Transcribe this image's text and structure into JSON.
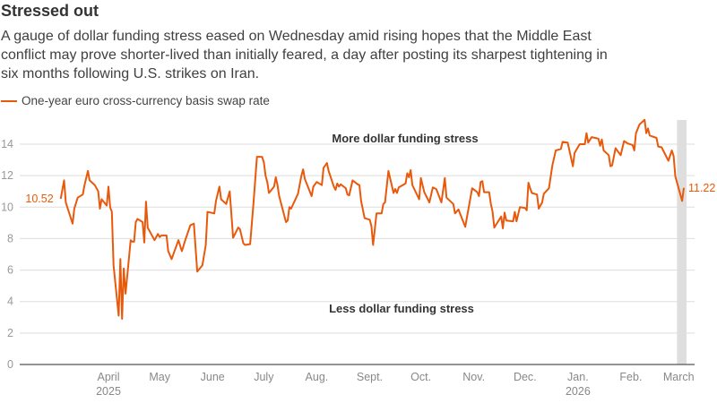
{
  "title": "Stressed out",
  "subtitle_lines": [
    "A gauge of dollar funding stress eased on Wednesday amid rising hopes that the Middle East",
    "conflict may prove shorter-lived than initially feared, a day after posting its sharpest tightening in",
    "six months following U.S. strikes on Iran."
  ],
  "chart_data": {
    "type": "line",
    "title": "Stressed out",
    "xlabel": "",
    "ylabel": "",
    "ylim": [
      0,
      14
    ],
    "yticks": [
      0,
      2,
      4,
      6,
      8,
      10,
      12,
      14
    ],
    "grid": true,
    "legend_position": "top-left",
    "line_color": "#e8590c",
    "shade_color": "#dedede",
    "shaded_range": [
      "2026-02-28",
      "2026-03-04"
    ],
    "xticks": [
      {
        "date": "2025-04-01",
        "label": "April",
        "sublabel": "2025"
      },
      {
        "date": "2025-05-01",
        "label": "May",
        "sublabel": ""
      },
      {
        "date": "2025-06-01",
        "label": "June",
        "sublabel": ""
      },
      {
        "date": "2025-07-01",
        "label": "July",
        "sublabel": ""
      },
      {
        "date": "2025-08-01",
        "label": "Aug.",
        "sublabel": ""
      },
      {
        "date": "2025-09-01",
        "label": "Sept.",
        "sublabel": ""
      },
      {
        "date": "2025-10-01",
        "label": "Oct.",
        "sublabel": ""
      },
      {
        "date": "2025-11-01",
        "label": "Nov.",
        "sublabel": ""
      },
      {
        "date": "2025-12-01",
        "label": "Dec.",
        "sublabel": ""
      },
      {
        "date": "2026-01-01",
        "label": "Jan.",
        "sublabel": "2026"
      },
      {
        "date": "2026-02-01",
        "label": "Feb.",
        "sublabel": ""
      },
      {
        "date": "2026-03-01",
        "label": "March",
        "sublabel": ""
      }
    ],
    "annotations": [
      "More dollar funding stress",
      "Less dollar funding stress"
    ],
    "start_label": "10.52",
    "end_label": "11.22",
    "series": [
      {
        "name": "One-year euro cross-currency basis swap rate",
        "points": [
          [
            "2025-03-04",
            10.52
          ],
          [
            "2025-03-06",
            11.7
          ],
          [
            "2025-03-07",
            10.3
          ],
          [
            "2025-03-11",
            8.95
          ],
          [
            "2025-03-12",
            9.9
          ],
          [
            "2025-03-14",
            10.6
          ],
          [
            "2025-03-17",
            10.8
          ],
          [
            "2025-03-18",
            11.4
          ],
          [
            "2025-03-20",
            12.3
          ],
          [
            "2025-03-21",
            11.7
          ],
          [
            "2025-03-24",
            11.4
          ],
          [
            "2025-03-26",
            11.0
          ],
          [
            "2025-03-27",
            9.9
          ],
          [
            "2025-03-28",
            10.5
          ],
          [
            "2025-03-31",
            10.1
          ],
          [
            "2025-04-01",
            11.3
          ],
          [
            "2025-04-02",
            10.0
          ],
          [
            "2025-04-03",
            9.7
          ],
          [
            "2025-04-04",
            6.3
          ],
          [
            "2025-04-07",
            3.1
          ],
          [
            "2025-04-08",
            6.7
          ],
          [
            "2025-04-09",
            2.9
          ],
          [
            "2025-04-10",
            6.1
          ],
          [
            "2025-04-11",
            4.5
          ],
          [
            "2025-04-14",
            7.9
          ],
          [
            "2025-04-15",
            7.8
          ],
          [
            "2025-04-16",
            7.8
          ],
          [
            "2025-04-17",
            9.05
          ],
          [
            "2025-04-18",
            9.25
          ],
          [
            "2025-04-21",
            9.05
          ],
          [
            "2025-04-22",
            7.75
          ],
          [
            "2025-04-23",
            10.35
          ],
          [
            "2025-04-24",
            8.7
          ],
          [
            "2025-04-28",
            7.9
          ],
          [
            "2025-04-30",
            8.3
          ],
          [
            "2025-05-01",
            8.1
          ],
          [
            "2025-05-02",
            8.2
          ],
          [
            "2025-05-05",
            8.2
          ],
          [
            "2025-05-06",
            7.2
          ],
          [
            "2025-05-08",
            6.7
          ],
          [
            "2025-05-12",
            7.9
          ],
          [
            "2025-05-14",
            7.2
          ],
          [
            "2025-05-16",
            7.9
          ],
          [
            "2025-05-19",
            8.85
          ],
          [
            "2025-05-21",
            8.95
          ],
          [
            "2025-05-23",
            5.9
          ],
          [
            "2025-05-26",
            6.3
          ],
          [
            "2025-05-28",
            7.6
          ],
          [
            "2025-05-29",
            9.7
          ],
          [
            "2025-06-02",
            9.6
          ],
          [
            "2025-06-03",
            10.4
          ],
          [
            "2025-06-05",
            11.3
          ],
          [
            "2025-06-06",
            10.5
          ],
          [
            "2025-06-09",
            10.2
          ],
          [
            "2025-06-11",
            11.0
          ],
          [
            "2025-06-13",
            8.05
          ],
          [
            "2025-06-16",
            8.7
          ],
          [
            "2025-06-17",
            8.6
          ],
          [
            "2025-06-19",
            7.7
          ],
          [
            "2025-06-20",
            7.6
          ],
          [
            "2025-06-23",
            7.65
          ],
          [
            "2025-06-25",
            10.3
          ],
          [
            "2025-06-27",
            13.2
          ],
          [
            "2025-06-30",
            13.2
          ],
          [
            "2025-07-01",
            12.85
          ],
          [
            "2025-07-02",
            12.0
          ],
          [
            "2025-07-03",
            11.6
          ],
          [
            "2025-07-04",
            10.9
          ],
          [
            "2025-07-07",
            11.3
          ],
          [
            "2025-07-08",
            11.9
          ],
          [
            "2025-07-09",
            11.4
          ],
          [
            "2025-07-10",
            10.7
          ],
          [
            "2025-07-14",
            9.05
          ],
          [
            "2025-07-15",
            9.15
          ],
          [
            "2025-07-16",
            10.0
          ],
          [
            "2025-07-17",
            9.9
          ],
          [
            "2025-07-21",
            10.85
          ],
          [
            "2025-07-23",
            12.0
          ],
          [
            "2025-07-24",
            12.4
          ],
          [
            "2025-07-25",
            11.8
          ],
          [
            "2025-07-29",
            10.7
          ],
          [
            "2025-07-30",
            11.3
          ],
          [
            "2025-08-01",
            11.6
          ],
          [
            "2025-08-04",
            11.4
          ],
          [
            "2025-08-05",
            12.5
          ],
          [
            "2025-08-07",
            12.8
          ],
          [
            "2025-08-08",
            12.3
          ],
          [
            "2025-08-11",
            11.3
          ],
          [
            "2025-08-12",
            11.1
          ],
          [
            "2025-08-13",
            11.5
          ],
          [
            "2025-08-14",
            11.3
          ],
          [
            "2025-08-15",
            11.45
          ],
          [
            "2025-08-18",
            11.2
          ],
          [
            "2025-08-19",
            10.8
          ],
          [
            "2025-08-20",
            10.75
          ],
          [
            "2025-08-22",
            11.7
          ],
          [
            "2025-08-25",
            11.45
          ],
          [
            "2025-08-26",
            11.4
          ],
          [
            "2025-08-27",
            10.4
          ],
          [
            "2025-08-29",
            9.3
          ],
          [
            "2025-09-01",
            9.2
          ],
          [
            "2025-09-02",
            8.8
          ],
          [
            "2025-09-03",
            7.6
          ],
          [
            "2025-09-05",
            9.6
          ],
          [
            "2025-09-08",
            9.6
          ],
          [
            "2025-09-09",
            10.2
          ],
          [
            "2025-09-10",
            10.3
          ],
          [
            "2025-09-12",
            12.3
          ],
          [
            "2025-09-15",
            10.9
          ],
          [
            "2025-09-16",
            11.15
          ],
          [
            "2025-09-17",
            10.9
          ],
          [
            "2025-09-18",
            11.25
          ],
          [
            "2025-09-22",
            11.5
          ],
          [
            "2025-09-23",
            12.15
          ],
          [
            "2025-09-24",
            11.9
          ],
          [
            "2025-09-25",
            12.35
          ],
          [
            "2025-09-26",
            11.4
          ],
          [
            "2025-09-30",
            10.5
          ],
          [
            "2025-10-01",
            11.85
          ],
          [
            "2025-10-03",
            10.95
          ],
          [
            "2025-10-06",
            10.3
          ],
          [
            "2025-10-08",
            11.25
          ],
          [
            "2025-10-10",
            11.15
          ],
          [
            "2025-10-13",
            10.3
          ],
          [
            "2025-10-15",
            11.85
          ],
          [
            "2025-10-16",
            10.6
          ],
          [
            "2025-10-20",
            10.2
          ],
          [
            "2025-10-21",
            9.6
          ],
          [
            "2025-10-23",
            9.85
          ],
          [
            "2025-10-27",
            8.75
          ],
          [
            "2025-10-31",
            11.2
          ],
          [
            "2025-11-03",
            10.95
          ],
          [
            "2025-11-04",
            10.7
          ],
          [
            "2025-11-05",
            11.6
          ],
          [
            "2025-11-06",
            11.65
          ],
          [
            "2025-11-07",
            10.95
          ],
          [
            "2025-11-10",
            10.95
          ],
          [
            "2025-11-11",
            10.2
          ],
          [
            "2025-11-12",
            9.7
          ],
          [
            "2025-11-13",
            8.7
          ],
          [
            "2025-11-17",
            9.4
          ],
          [
            "2025-11-18",
            8.65
          ],
          [
            "2025-11-19",
            9.65
          ],
          [
            "2025-11-20",
            9.15
          ],
          [
            "2025-11-24",
            9.1
          ],
          [
            "2025-11-25",
            9.7
          ],
          [
            "2025-11-26",
            9.1
          ],
          [
            "2025-11-28",
            10.0
          ],
          [
            "2025-12-01",
            9.95
          ],
          [
            "2025-12-02",
            9.8
          ],
          [
            "2025-12-03",
            11.55
          ],
          [
            "2025-12-04",
            11.2
          ],
          [
            "2025-12-05",
            10.9
          ],
          [
            "2025-12-08",
            10.8
          ],
          [
            "2025-12-09",
            9.9
          ],
          [
            "2025-12-11",
            10.3
          ],
          [
            "2025-12-12",
            10.85
          ],
          [
            "2025-12-15",
            11.2
          ],
          [
            "2025-12-17",
            12.65
          ],
          [
            "2025-12-19",
            13.6
          ],
          [
            "2025-12-22",
            13.7
          ],
          [
            "2025-12-23",
            14.15
          ],
          [
            "2025-12-26",
            14.1
          ],
          [
            "2025-12-29",
            12.6
          ],
          [
            "2025-12-30",
            13.45
          ],
          [
            "2026-01-02",
            14.0
          ],
          [
            "2026-01-05",
            14.0
          ],
          [
            "2026-01-06",
            14.7
          ],
          [
            "2026-01-07",
            14.1
          ],
          [
            "2026-01-09",
            14.45
          ],
          [
            "2026-01-13",
            14.35
          ],
          [
            "2026-01-14",
            13.9
          ],
          [
            "2026-01-15",
            14.3
          ],
          [
            "2026-01-16",
            13.6
          ],
          [
            "2026-01-19",
            13.3
          ],
          [
            "2026-01-20",
            12.6
          ],
          [
            "2026-01-21",
            12.65
          ],
          [
            "2026-01-23",
            13.75
          ],
          [
            "2026-01-26",
            13.3
          ],
          [
            "2026-01-28",
            14.2
          ],
          [
            "2026-01-30",
            14.05
          ],
          [
            "2026-02-02",
            13.95
          ],
          [
            "2026-02-03",
            13.6
          ],
          [
            "2026-02-04",
            14.7
          ],
          [
            "2026-02-06",
            15.25
          ],
          [
            "2026-02-09",
            15.55
          ],
          [
            "2026-02-10",
            14.7
          ],
          [
            "2026-02-11",
            15.0
          ],
          [
            "2026-02-12",
            14.55
          ],
          [
            "2026-02-16",
            14.4
          ],
          [
            "2026-02-17",
            13.85
          ],
          [
            "2026-02-19",
            13.8
          ],
          [
            "2026-02-23",
            12.95
          ],
          [
            "2026-02-25",
            13.6
          ],
          [
            "2026-02-26",
            13.25
          ],
          [
            "2026-02-27",
            11.95
          ],
          [
            "2026-03-03",
            10.4
          ],
          [
            "2026-03-04",
            11.22
          ]
        ]
      }
    ]
  }
}
